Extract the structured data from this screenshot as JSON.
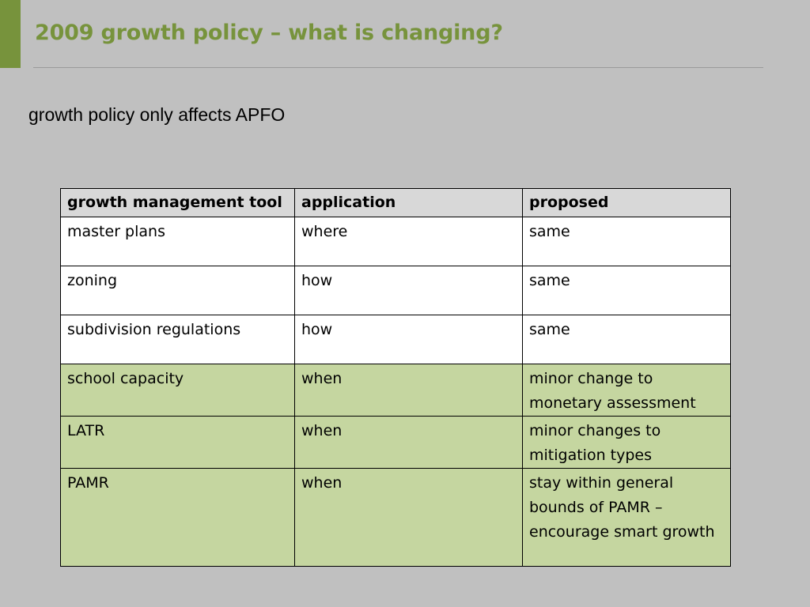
{
  "slide": {
    "title": "2009 growth policy – what is changing?",
    "subtitle": "growth policy only affects APFO",
    "colors": {
      "accent": "#77933c",
      "background": "#c0c0c0",
      "header_fill": "#d8d8d8",
      "highlight_fill": "#c5d6a0"
    }
  },
  "table": {
    "headers": [
      "growth management tool",
      "application",
      "proposed"
    ],
    "rows": [
      {
        "tool": "master plans",
        "application": "where",
        "proposed": "same",
        "highlighted": false
      },
      {
        "tool": "zoning",
        "application": "how",
        "proposed": "same",
        "highlighted": false
      },
      {
        "tool": "subdivision regulations",
        "application": "how",
        "proposed": "same",
        "highlighted": false
      },
      {
        "tool": "school capacity",
        "application": "when",
        "proposed": "minor change to monetary assessment",
        "highlighted": true
      },
      {
        "tool": "LATR",
        "application": "when",
        "proposed": "minor changes to mitigation types",
        "highlighted": true
      },
      {
        "tool": "PAMR",
        "application": "when",
        "proposed": "stay within general bounds of PAMR – encourage smart growth",
        "highlighted": true
      }
    ]
  }
}
